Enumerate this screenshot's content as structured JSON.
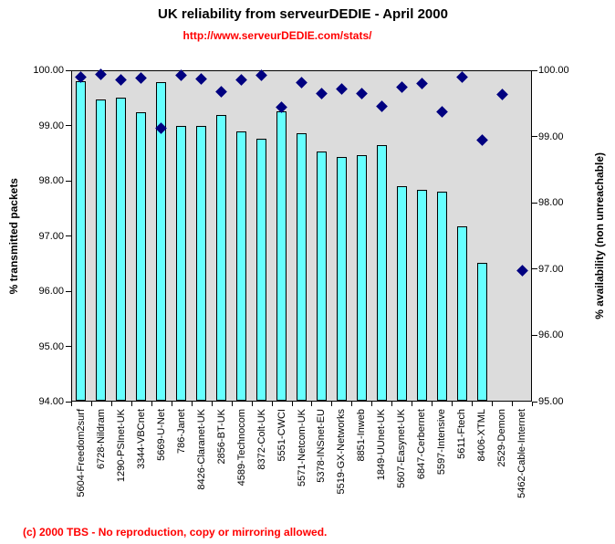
{
  "title": "UK reliability from serveurDEDIE - April 2000",
  "subtitle_url": "http://www.serveurDEDIE.com/stats/",
  "footer": "(c) 2000 TBS - No reproduction, copy or mirroring allowed.",
  "colors": {
    "bar_fill": "#66FFFF",
    "bar_border": "#000000",
    "marker_fill": "#000080",
    "plot_bg": "#DCDCDC",
    "title_color": "#000000",
    "red_text": "#FF0000"
  },
  "chart_data": {
    "type": "bar",
    "title": "UK reliability from serveurDEDIE - April 2000",
    "grid": false,
    "legend": "none",
    "categories": [
      "5604-Freedom2surf",
      "6728-Nildram",
      "1290-PSInet-UK",
      "3344-VBCnet",
      "5669-U-Net",
      "786-Janet",
      "8426-Claranet-UK",
      "2856-BT-UK",
      "4589-Technocom",
      "8372-Colt-UK",
      "5551-CWCI",
      "5571-Netcom-UK",
      "5378-INSnet-EU",
      "5519-GX-Networks",
      "8851-Inweb",
      "1849-UUnet-UK",
      "5607-Easynet-UK",
      "6847-Cerbernet",
      "5597-Intensive",
      "5611-Ftech",
      "8406-XTML",
      "2529-Demon",
      "5462-Cable-Internet"
    ],
    "left_axis": {
      "label": "% transmitted packets",
      "min": 94,
      "max": 100,
      "tick_labels": [
        "100.00",
        "99.00",
        "98.00",
        "97.00",
        "96.00",
        "95.00",
        "94.00"
      ]
    },
    "right_axis": {
      "label": "% availability (non unreachable)",
      "min": 95,
      "max": 100,
      "tick_labels": [
        "100.00",
        "99.00",
        "98.00",
        "97.00",
        "96.00",
        "95.00"
      ]
    },
    "series": [
      {
        "name": "% transmitted packets",
        "type": "bar",
        "axis": "left",
        "values": [
          99.8,
          99.47,
          99.51,
          99.24,
          99.79,
          98.99,
          99.0,
          99.19,
          98.9,
          98.76,
          99.26,
          98.86,
          98.53,
          98.43,
          98.46,
          98.64,
          97.9,
          97.83,
          97.8,
          97.17,
          96.51,
          null,
          null
        ]
      },
      {
        "name": "% availability (non unreachable)",
        "type": "scatter",
        "marker": "diamond",
        "axis": "right",
        "values": [
          99.89,
          99.94,
          99.85,
          99.88,
          99.12,
          99.93,
          99.87,
          99.67,
          99.86,
          99.93,
          99.44,
          99.82,
          99.65,
          99.72,
          99.65,
          99.45,
          99.74,
          99.8,
          99.37,
          99.89,
          98.95,
          99.64,
          96.98
        ]
      }
    ]
  }
}
